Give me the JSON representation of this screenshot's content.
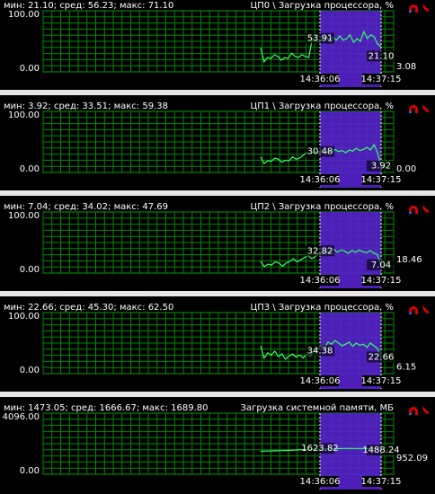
{
  "panels": [
    {
      "stats": "мин: 21.10; сред: 56.23; макс: 71.10",
      "title": "ЦП0 \\ Загрузка процессора, %",
      "yticks": [
        {
          "value": 100,
          "label": "100.00"
        },
        {
          "value": 0,
          "label": "0.00"
        }
      ],
      "markers": [
        {
          "value": 53.91,
          "label": "53.91"
        },
        {
          "value": 21.1,
          "label": "21.10"
        }
      ],
      "current": {
        "value": 3.08,
        "label": "3.08"
      },
      "times": [
        "14:36:06",
        "14:37:15"
      ],
      "values": [
        38,
        12,
        20,
        18,
        25,
        22,
        15,
        20,
        18,
        28,
        22,
        20,
        25,
        22,
        20,
        55,
        52,
        48,
        55,
        60,
        50,
        58,
        52,
        60,
        52,
        55,
        62,
        48,
        55,
        50,
        68,
        55,
        62,
        58,
        45,
        40
      ]
    },
    {
      "stats": "мин: 3.92; сред: 33.51; макс: 59.38",
      "title": "ЦП1 \\ Загрузка процессора, %",
      "yticks": [
        {
          "value": 100,
          "label": "100.00"
        },
        {
          "value": 0,
          "label": "0.00"
        }
      ],
      "markers": [
        {
          "value": 30.48,
          "label": "30.48"
        },
        {
          "value": 3.92,
          "label": "3.92"
        }
      ],
      "current": {
        "value": 0,
        "label": "0.00"
      },
      "times": [
        "14:36:06",
        "14:37:15"
      ],
      "values": [
        22,
        10,
        15,
        14,
        20,
        18,
        12,
        16,
        15,
        22,
        18,
        20,
        25,
        30,
        28,
        32,
        30,
        35,
        30,
        33,
        31,
        36,
        32,
        34,
        30,
        35,
        33,
        38,
        34,
        36,
        40,
        35,
        45,
        30,
        4
      ]
    },
    {
      "stats": "мин: 7.04; сред: 34.02; макс: 47.69",
      "title": "ЦП2 \\ Загрузка процессора, %",
      "yticks": [
        {
          "value": 100,
          "label": "100.00"
        },
        {
          "value": 0,
          "label": "0.00"
        }
      ],
      "markers": [
        {
          "value": 32.82,
          "label": "32.82"
        },
        {
          "value": 7.04,
          "label": "7.04"
        }
      ],
      "current": {
        "value": 18.46,
        "label": "18.46"
      },
      "times": [
        "14:36:06",
        "14:37:15"
      ],
      "values": [
        15,
        5,
        10,
        8,
        14,
        12,
        6,
        12,
        15,
        20,
        14,
        18,
        22,
        26,
        20,
        24,
        30,
        28,
        34,
        30,
        38,
        32,
        36,
        34,
        30,
        35,
        32,
        36,
        33,
        31,
        35,
        30,
        28,
        7
      ]
    },
    {
      "stats": "мин: 22.66; сред: 45.30; макс: 62.50",
      "title": "ЦП3 \\ Загрузка процессора, %",
      "yticks": [
        {
          "value": 100,
          "label": "100.00"
        },
        {
          "value": 0,
          "label": "0.00"
        }
      ],
      "markers": [
        {
          "value": 34.38,
          "label": "34.38"
        },
        {
          "value": 22.66,
          "label": "22.66"
        }
      ],
      "current": {
        "value": 6.15,
        "label": "6.15"
      },
      "times": [
        "14:36:06",
        "14:37:15"
      ],
      "values": [
        45,
        22,
        32,
        28,
        35,
        25,
        30,
        20,
        26,
        30,
        24,
        28,
        22,
        30,
        26,
        35,
        38,
        45,
        40,
        52,
        48,
        55,
        50,
        45,
        48,
        52,
        44,
        50,
        46,
        48,
        42,
        50,
        45,
        40,
        23
      ]
    },
    {
      "stats": "мин: 1473.05; сред: 1666.67; макс: 1689.80",
      "title": "Загрузка системной памяти, МБ",
      "yticks": [
        {
          "value": 4096,
          "label": "4096.00"
        },
        {
          "value": 0,
          "label": "0.00"
        }
      ],
      "markers": [
        {
          "value": 1623.82,
          "label": "1623.82"
        },
        {
          "value": 1488.24,
          "label": "1488.24"
        }
      ],
      "current": {
        "value": 952.09,
        "label": "952.09"
      },
      "times": [
        "14:36:06",
        "14:37:15"
      ],
      "values": [
        1473,
        1480,
        1490,
        1500,
        1510,
        1520,
        1530,
        1545,
        1560,
        1575,
        1590,
        1605,
        1615,
        1624,
        1640,
        1650,
        1660,
        1668,
        1675,
        1680,
        1685,
        1690,
        1688,
        1686,
        1684,
        1682,
        1680,
        1678,
        1675,
        1488
      ]
    }
  ]
}
